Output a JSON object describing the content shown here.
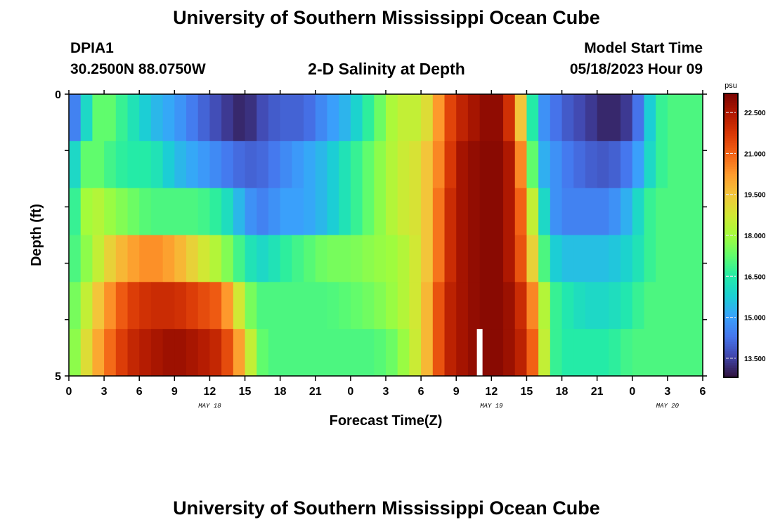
{
  "header": {
    "title": "University of Southern Mississippi Ocean Cube",
    "station": "DPIA1",
    "coords": "30.2500N  88.0750W",
    "chart_title": "2-D Salinity at Depth",
    "model_label": "Model Start Time",
    "model_time": "05/18/2023 Hour 09"
  },
  "footer": {
    "title": "University of Southern Mississippi Ocean Cube"
  },
  "chart_data": {
    "type": "heatmap",
    "title": "2-D Salinity at Depth",
    "xlabel": "Forecast Time(Z)",
    "ylabel": "Depth (ft)",
    "x_ticks": [
      "0",
      "3",
      "6",
      "9",
      "12",
      "15",
      "18",
      "21",
      "0",
      "3",
      "6",
      "9",
      "12",
      "15",
      "18",
      "21",
      "0",
      "3",
      "6"
    ],
    "x_hours": [
      0,
      3,
      6,
      9,
      12,
      15,
      18,
      21,
      24,
      27,
      30,
      33,
      36,
      39,
      42,
      45,
      48,
      51,
      54
    ],
    "xlim": [
      0,
      54
    ],
    "date_labels": [
      {
        "label": "MAY 18",
        "hour": 12
      },
      {
        "label": "MAY 19",
        "hour": 36
      },
      {
        "label": "MAY 20",
        "hour": 51
      }
    ],
    "y_ticks": [
      "0",
      "5"
    ],
    "ylim": [
      0,
      5
    ],
    "depth_levels": [
      0,
      1,
      2,
      3,
      4,
      5
    ],
    "colorbar": {
      "unit": "psu",
      "min": 12.8,
      "max": 23.2,
      "ticks": [
        "13.500",
        "15.000",
        "16.500",
        "18.000",
        "19.500",
        "21.000",
        "22.500"
      ],
      "tick_values": [
        13.5,
        15.0,
        16.5,
        18.0,
        19.5,
        21.0,
        22.5
      ],
      "colors": [
        "#30123b",
        "#4145ab",
        "#4675ed",
        "#39a2fc",
        "#1bcfd4",
        "#24eca6",
        "#61fc6c",
        "#a4fc3b",
        "#d1e834",
        "#f3c63a",
        "#fe9b2d",
        "#f36315",
        "#d93806",
        "#b11901",
        "#7a0402"
      ]
    },
    "control_hours": [
      0,
      1,
      2,
      3,
      5,
      7,
      9,
      11,
      13,
      15,
      16,
      17,
      18,
      20,
      22,
      24,
      26,
      28,
      30,
      31,
      32,
      33,
      35,
      36,
      37,
      38,
      39,
      40,
      41,
      42,
      44,
      46,
      48,
      49,
      50,
      51,
      52,
      54
    ],
    "salinity_rows": [
      {
        "depth": 0,
        "values": [
          14.0,
          15.0,
          17.0,
          17.5,
          16.5,
          15.5,
          15.0,
          14.2,
          13.5,
          13.0,
          13.5,
          13.8,
          14.0,
          14.0,
          14.8,
          15.5,
          17.0,
          18.5,
          18.5,
          19.5,
          21.0,
          22.0,
          22.8,
          23.0,
          22.8,
          21.0,
          18.0,
          15.0,
          14.5,
          14.0,
          13.5,
          13.0,
          13.5,
          15.0,
          16.5,
          17.0,
          17.0,
          17.0
        ]
      },
      {
        "depth": 1,
        "values": [
          15.0,
          17.0,
          17.5,
          17.0,
          16.5,
          16.5,
          15.5,
          15.0,
          14.5,
          14.0,
          14.0,
          14.2,
          14.5,
          15.0,
          15.5,
          16.5,
          17.5,
          18.5,
          19.0,
          20.0,
          21.0,
          22.5,
          23.0,
          23.0,
          23.0,
          22.0,
          19.0,
          15.5,
          15.0,
          14.5,
          14.0,
          13.8,
          14.5,
          15.5,
          16.5,
          17.0,
          17.0,
          17.0
        ]
      },
      {
        "depth": 2,
        "values": [
          16.0,
          17.5,
          18.5,
          18.0,
          17.5,
          17.0,
          17.0,
          17.0,
          16.5,
          15.0,
          14.5,
          14.5,
          15.0,
          15.0,
          15.5,
          16.5,
          17.5,
          18.5,
          19.0,
          20.0,
          21.5,
          22.5,
          23.0,
          23.0,
          23.0,
          22.0,
          20.0,
          17.0,
          15.0,
          14.5,
          14.5,
          14.5,
          15.5,
          16.5,
          17.0,
          17.0,
          17.0,
          17.0
        ]
      },
      {
        "depth": 3,
        "values": [
          16.5,
          17.5,
          18.0,
          19.0,
          20.0,
          20.5,
          20.0,
          19.0,
          18.0,
          16.5,
          16.0,
          16.0,
          16.5,
          17.0,
          17.5,
          17.5,
          17.8,
          18.0,
          19.0,
          20.0,
          21.5,
          22.5,
          23.0,
          23.0,
          23.0,
          22.0,
          20.5,
          18.0,
          16.0,
          15.5,
          15.5,
          15.5,
          16.0,
          16.5,
          17.0,
          17.0,
          17.0,
          17.0
        ]
      },
      {
        "depth": 4,
        "values": [
          17.0,
          18.0,
          19.0,
          20.0,
          21.5,
          22.0,
          22.0,
          21.5,
          21.0,
          18.0,
          17.0,
          17.0,
          17.0,
          17.0,
          17.0,
          17.2,
          17.5,
          18.0,
          19.0,
          20.5,
          22.0,
          22.5,
          23.0,
          23.0,
          23.0,
          22.5,
          21.5,
          19.5,
          17.0,
          16.5,
          16.0,
          16.0,
          16.5,
          17.0,
          17.0,
          17.0,
          17.0,
          17.0
        ]
      },
      {
        "depth": 5,
        "values": [
          17.0,
          18.5,
          19.5,
          20.5,
          22.0,
          22.5,
          22.8,
          22.5,
          22.0,
          19.5,
          17.5,
          17.0,
          17.0,
          17.0,
          17.0,
          17.0,
          17.0,
          17.5,
          19.0,
          20.5,
          22.0,
          22.5,
          23.0,
          23.0,
          23.0,
          22.5,
          22.0,
          20.0,
          17.0,
          16.5,
          16.5,
          16.5,
          17.0,
          17.0,
          17.0,
          17.0,
          17.0,
          17.0
        ]
      }
    ],
    "gaps": [
      {
        "depth": 5,
        "hour": 35
      }
    ]
  }
}
